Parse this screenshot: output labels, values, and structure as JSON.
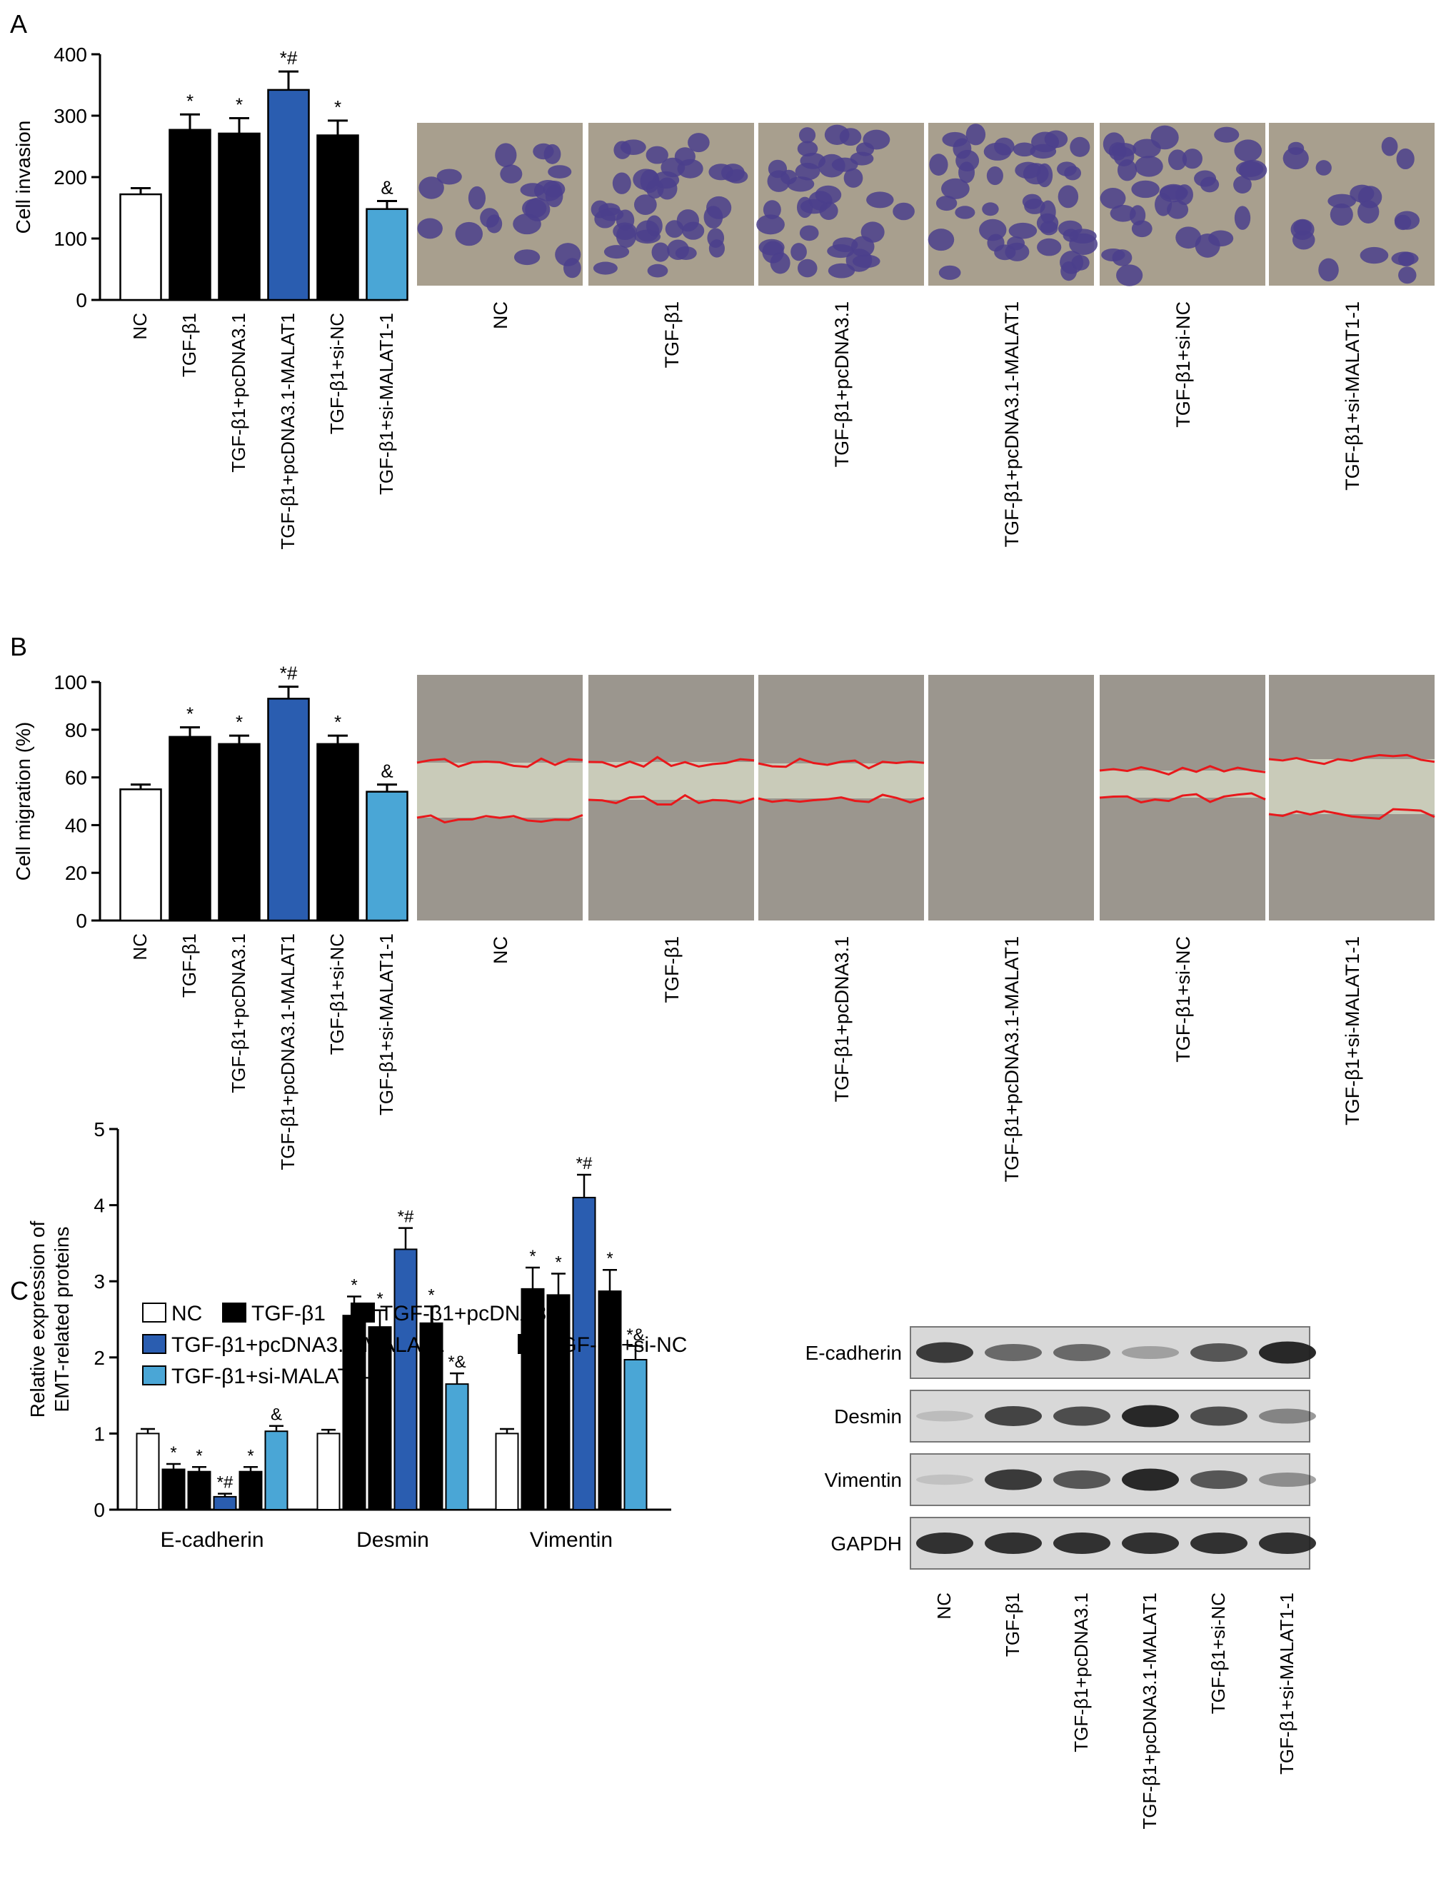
{
  "panel_letters": [
    "A",
    "B",
    "C"
  ],
  "colors": {
    "nc": "#ffffff",
    "black": "#000000",
    "overexpression": "#2a5db0",
    "knockdown": "#4aa6d6",
    "invasion_bg": "#a89f8e",
    "invasion_cell": "#4b3f8c",
    "wound_tissue": "#9b968e",
    "wound_gap": "#c9cbb9",
    "wound_line": "#e8181b",
    "blot_band": "#1f1f1f"
  },
  "groups": [
    "NC",
    "TGF-β1",
    "TGF-β1+pcDNA3.1",
    "TGF-β1+pcDNA3.1-MALAT1",
    "TGF-β1+si-NC",
    "TGF-β1+si-MALAT1-1"
  ],
  "group_color_keys": [
    "nc",
    "black",
    "black",
    "overexpression",
    "black",
    "knockdown"
  ],
  "panel_a": {
    "micrograph_labels": [
      "NC",
      "TGF-β1",
      "TGF-β1+pcDNA3.1",
      "TGF-β1+pcDNA3.1-MALAT1",
      "TGF-β1+si-NC",
      "TGF-β1+si-MALAT1-1"
    ],
    "micrograph_kind": "transwell invasion stain"
  },
  "panel_b": {
    "micrograph_labels": [
      "NC",
      "TGF-β1",
      "TGF-β1+pcDNA3.1",
      "TGF-β1+pcDNA3.1-MALAT1",
      "TGF-β1+si-NC",
      "TGF-β1+si-MALAT1-1"
    ],
    "micrograph_kind": "wound healing scratch"
  },
  "panel_c": {
    "legend": [
      "NC",
      "TGF-β1",
      "TGF-β1+pcDNA3.1",
      "TGF-β1+pcDNA3.1-MALAT1",
      "TGF-β1+si-NC",
      "TGF-β1+si-MALAT1-1"
    ],
    "blot_rows": [
      "E-cadherin",
      "Desmin",
      "Vimentin",
      "GAPDH"
    ],
    "blot_lanes": [
      "NC",
      "TGF-β1",
      "TGF-β1+pcDNA3.1",
      "TGF-β1+pcDNA3.1-MALAT1",
      "TGF-β1+si-NC",
      "TGF-β1+si-MALAT1-1"
    ],
    "blot_intensity": [
      [
        0.85,
        0.6,
        0.6,
        0.3,
        0.7,
        0.95
      ],
      [
        0.15,
        0.8,
        0.75,
        0.95,
        0.75,
        0.45
      ],
      [
        0.12,
        0.85,
        0.7,
        0.95,
        0.7,
        0.4
      ],
      [
        0.9,
        0.9,
        0.9,
        0.9,
        0.9,
        0.9
      ]
    ]
  },
  "chart_data": [
    {
      "type": "bar",
      "panel": "A",
      "ylabel": "Cell invasion",
      "categories": [
        "NC",
        "TGF-β1",
        "TGF-β1+pcDNA3.1",
        "TGF-β1+pcDNA3.1-MALAT1",
        "TGF-β1+si-NC",
        "TGF-β1+si-MALAT1-1"
      ],
      "values": [
        172,
        277,
        271,
        342,
        268,
        148
      ],
      "errors": [
        10,
        25,
        25,
        30,
        24,
        13
      ],
      "annotations": [
        "",
        "*",
        "*",
        "*#",
        "*",
        "&"
      ],
      "ylim": [
        0,
        400
      ],
      "yticks": [
        0,
        100,
        200,
        300,
        400
      ]
    },
    {
      "type": "bar",
      "panel": "B",
      "ylabel": "Cell migration (%)",
      "categories": [
        "NC",
        "TGF-β1",
        "TGF-β1+pcDNA3.1",
        "TGF-β1+pcDNA3.1-MALAT1",
        "TGF-β1+si-NC",
        "TGF-β1+si-MALAT1-1"
      ],
      "values": [
        55,
        77,
        74,
        93,
        74,
        54
      ],
      "errors": [
        2,
        4,
        3.5,
        5,
        3.5,
        3
      ],
      "annotations": [
        "",
        "*",
        "*",
        "*#",
        "*",
        "&"
      ],
      "ylim": [
        0,
        100
      ],
      "yticks": [
        0,
        20,
        40,
        60,
        80,
        100
      ]
    },
    {
      "type": "bar",
      "panel": "C",
      "ylabel": "Relative expression of EMT-related proteins",
      "ylabel_lines": [
        "Relative expression of",
        "EMT-related proteins"
      ],
      "categories": [
        "E-cadherin",
        "Desmin",
        "Vimentin"
      ],
      "ylim": [
        0,
        5
      ],
      "yticks": [
        0,
        1,
        2,
        3,
        4,
        5
      ],
      "series": [
        {
          "name": "NC",
          "values": [
            1.0,
            1.0,
            1.0
          ],
          "errors": [
            0.06,
            0.05,
            0.06
          ],
          "annotations": [
            "",
            "",
            ""
          ]
        },
        {
          "name": "TGF-β1",
          "values": [
            0.53,
            2.55,
            2.9
          ],
          "errors": [
            0.07,
            0.25,
            0.28
          ],
          "annotations": [
            "*",
            "*",
            "*"
          ]
        },
        {
          "name": "TGF-β1+pcDNA3.1",
          "values": [
            0.5,
            2.4,
            2.82
          ],
          "errors": [
            0.06,
            0.22,
            0.28
          ],
          "annotations": [
            "*",
            "*",
            "*"
          ]
        },
        {
          "name": "TGF-β1+pcDNA3.1-MALAT1",
          "values": [
            0.17,
            3.42,
            4.1
          ],
          "errors": [
            0.04,
            0.28,
            0.3
          ],
          "annotations": [
            "*#",
            "*#",
            "*#"
          ]
        },
        {
          "name": "TGF-β1+si-NC",
          "values": [
            0.5,
            2.45,
            2.87
          ],
          "errors": [
            0.06,
            0.22,
            0.28
          ],
          "annotations": [
            "*",
            "*",
            "*"
          ]
        },
        {
          "name": "TGF-β1+si-MALAT1-1",
          "values": [
            1.03,
            1.65,
            1.97
          ],
          "errors": [
            0.07,
            0.14,
            0.18
          ],
          "annotations": [
            "&",
            "*&",
            "*&"
          ]
        }
      ]
    }
  ]
}
